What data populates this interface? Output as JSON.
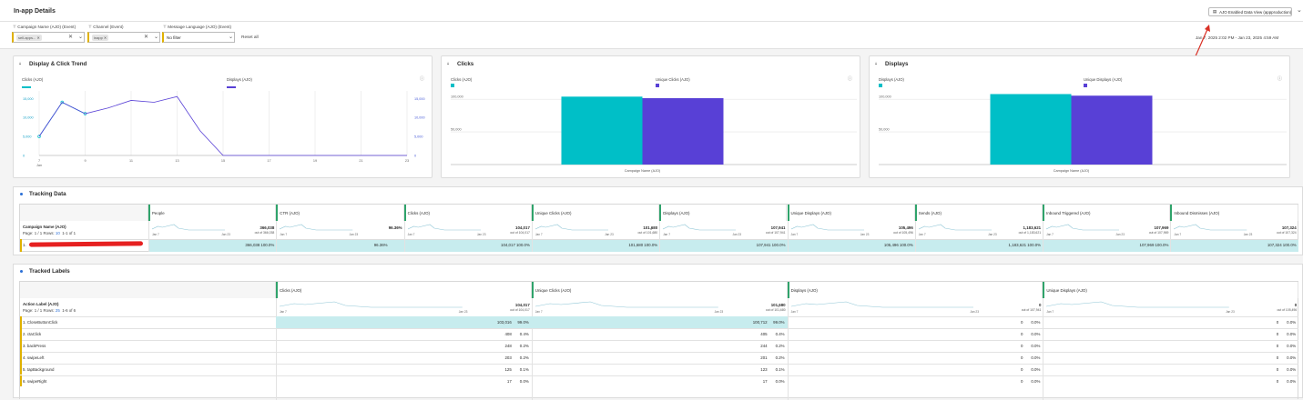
{
  "header": {
    "title": "In-app Details",
    "data_view": "AJO Enabled Data View (appproduction)"
  },
  "filters": {
    "campaign": {
      "label": "Campaign Name (AJO) (Event)",
      "chip": "sell-apps..."
    },
    "channel": {
      "label": "Channel (Event)",
      "chip": "inapp"
    },
    "language": {
      "label": "Message Language (AJO) (Event)",
      "value": "No filter"
    },
    "reset": "Reset all",
    "date_range": "Jan 7, 2025 2:02 PM - Jan 23, 2025 4:59 AM"
  },
  "trend": {
    "title": "Display & Click Trend",
    "legend_clicks": "Clicks (AJO)",
    "legend_displays": "Displays (AJO)",
    "left_ticks": [
      "15,000",
      "10,000",
      "5,000",
      "0"
    ],
    "right_ticks": [
      "15,000",
      "10,000",
      "5,000",
      "0"
    ],
    "x_ticks": [
      "7",
      "9",
      "11",
      "13",
      "15",
      "17",
      "19",
      "21",
      "23"
    ],
    "x_sub": "Jan"
  },
  "clicks_panel": {
    "title": "Clicks",
    "legend1": "Clicks (AJO)",
    "legend2": "Unique Clicks (AJO)",
    "ticks": [
      "100,000",
      "50,000"
    ],
    "xlabel": "Campaign Name (AJO)"
  },
  "displays_panel": {
    "title": "Displays",
    "legend1": "Displays (AJO)",
    "legend2": "Unique Displays (AJO)",
    "ticks": [
      "100,000",
      "50,000"
    ],
    "xlabel": "Campaign Name (AJO)"
  },
  "chart_data": [
    {
      "type": "line",
      "x": [
        "Jan 7",
        "Jan 8",
        "Jan 9",
        "Jan 10",
        "Jan 11",
        "Jan 12",
        "Jan 13",
        "Jan 14",
        "Jan 15",
        "Jan 16",
        "Jan 17",
        "Jan 18",
        "Jan 19",
        "Jan 20",
        "Jan 21",
        "Jan 22",
        "Jan 23"
      ],
      "series": [
        {
          "name": "Clicks (AJO)",
          "values": [
            5000,
            14000,
            11000,
            null,
            null,
            null,
            null,
            null,
            null,
            null,
            null,
            null,
            null,
            null,
            null,
            null,
            null
          ]
        },
        {
          "name": "Displays (AJO)",
          "values": [
            5000,
            14000,
            11000,
            12500,
            14500,
            14000,
            15500,
            6500,
            0,
            0,
            0,
            0,
            0,
            0,
            0,
            0,
            0
          ]
        }
      ],
      "ylim": [
        0,
        17000
      ]
    },
    {
      "type": "bar",
      "categories": [
        "Campaign"
      ],
      "series": [
        {
          "name": "Clicks (AJO)",
          "values": [
            104017
          ]
        },
        {
          "name": "Unique Clicks (AJO)",
          "values": [
            101680
          ]
        }
      ],
      "xlabel": "Campaign Name (AJO)",
      "ylim": [
        0,
        110000
      ]
    },
    {
      "type": "bar",
      "categories": [
        "Campaign"
      ],
      "series": [
        {
          "name": "Displays (AJO)",
          "values": [
            107941
          ]
        },
        {
          "name": "Unique Displays (AJO)",
          "values": [
            105496
          ]
        }
      ],
      "xlabel": "Campaign Name (AJO)",
      "ylim": [
        0,
        110000
      ]
    }
  ],
  "tracking": {
    "title": "Tracking Data",
    "dim": "Campaign Name (AJO)",
    "page": "Page: 1 / 1  Rows:",
    "rows_count": "10",
    "range": "1-1 of 1",
    "spark_start": "Jan 7",
    "spark_end": "Jan 23",
    "columns": [
      {
        "name": "People",
        "total": "366,038",
        "sub": "out of 366,038",
        "row": "366,038",
        "pct": "100.0%"
      },
      {
        "name": "CTR (AJO)",
        "total": "96.36%",
        "sub": "",
        "row": "96.36%",
        "pct": ""
      },
      {
        "name": "Clicks (AJO)",
        "total": "104,017",
        "sub": "out of 104,017",
        "row": "104,017",
        "pct": "100.0%"
      },
      {
        "name": "Unique Clicks (AJO)",
        "total": "101,680",
        "sub": "out of 101,680",
        "row": "101,680",
        "pct": "100.0%"
      },
      {
        "name": "Displays (AJO)",
        "total": "107,941",
        "sub": "out of 107,941",
        "row": "107,941",
        "pct": "100.0%"
      },
      {
        "name": "Unique Displays (AJO)",
        "total": "105,496",
        "sub": "out of 105,496",
        "row": "105,496",
        "pct": "100.0%"
      },
      {
        "name": "Sends (AJO)",
        "total": "1,183,621",
        "sub": "out of 1,183,621",
        "row": "1,183,621",
        "pct": "100.0%"
      },
      {
        "name": "Inbound Triggered (AJO)",
        "total": "107,969",
        "sub": "out of 107,969",
        "row": "107,969",
        "pct": "100.0%"
      },
      {
        "name": "Inbound Dismisses (AJO)",
        "total": "107,324",
        "sub": "out of 107,324",
        "row": "107,324",
        "pct": "100.0%"
      }
    ],
    "row_index": "1."
  },
  "labels": {
    "title": "Tracked Labels",
    "dim": "Action Label (AJO)",
    "page": "Page: 1 / 1  Rows:",
    "rows_count": "25",
    "range": "1-6 of 6",
    "spark_start": "Jan 7",
    "spark_end": "Jan 23",
    "columns": [
      {
        "name": "Clicks (AJO)",
        "total": "104,017",
        "sub": "out of 104,017"
      },
      {
        "name": "Unique Clicks (AJO)",
        "total": "101,680",
        "sub": "out of 101,680"
      },
      {
        "name": "Displays (AJO)",
        "total": "0",
        "sub": "out of 107,941"
      },
      {
        "name": "Unique Displays (AJO)",
        "total": "0",
        "sub": "out of 105,496"
      }
    ],
    "rows": [
      {
        "label": "1.  CloseButtonClick",
        "c": [
          "103,016",
          "99.0%",
          "100,712",
          "99.0%",
          "0",
          "0.0%",
          "0",
          "0.0%"
        ]
      },
      {
        "label": "2.  ctaClick",
        "c": [
          "408",
          "0.4%",
          "405",
          "0.4%",
          "0",
          "0.0%",
          "0",
          "0.0%"
        ]
      },
      {
        "label": "3.  backPress",
        "c": [
          "248",
          "0.2%",
          "244",
          "0.2%",
          "0",
          "0.0%",
          "0",
          "0.0%"
        ]
      },
      {
        "label": "4.  swipeLeft",
        "c": [
          "203",
          "0.2%",
          "201",
          "0.2%",
          "0",
          "0.0%",
          "0",
          "0.0%"
        ]
      },
      {
        "label": "5.  tapBackground",
        "c": [
          "125",
          "0.1%",
          "123",
          "0.1%",
          "0",
          "0.0%",
          "0",
          "0.0%"
        ]
      },
      {
        "label": "6.  swipeRight",
        "c": [
          "17",
          "0.0%",
          "17",
          "0.0%",
          "0",
          "0.0%",
          "0",
          "0.0%"
        ]
      }
    ]
  },
  "colors": {
    "teal": "#00bfc7",
    "purple": "#5840d6",
    "accent_green": "#2fa36b",
    "highlight": "#c7ecee",
    "arrow": "#d93025"
  }
}
